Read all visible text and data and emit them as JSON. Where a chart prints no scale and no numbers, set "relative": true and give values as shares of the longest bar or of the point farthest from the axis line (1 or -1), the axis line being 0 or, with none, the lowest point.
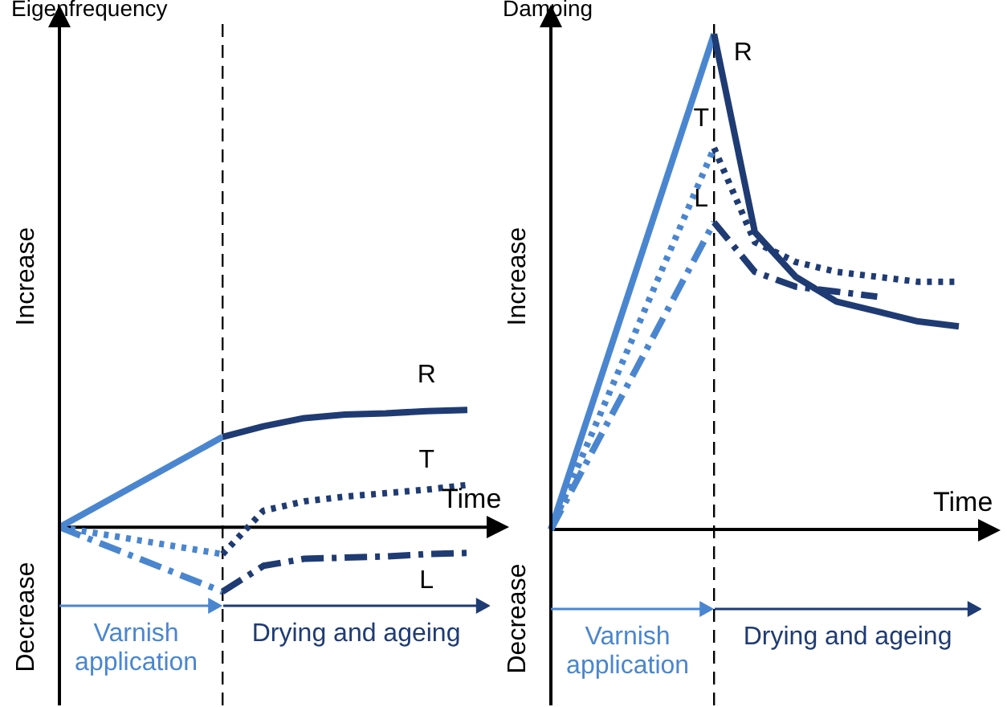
{
  "chart_data": [
    {
      "type": "line",
      "title": "Eigenfrequency",
      "xlabel": "Time",
      "ylabel": "Increase",
      "relative": true,
      "categories": [
        null,
        null,
        null,
        null,
        null,
        null,
        null,
        null,
        null,
        null,
        null
      ],
      "ref_lines": [
        {
          "axis": "x",
          "line_style": "dashed",
          "color": "#000000"
        }
      ],
      "series": [
        {
          "color": "#4a86d0",
          "line_style": "solid",
          "values": [
            0,
            null,
            null,
            null,
            0.77,
            null,
            null,
            null,
            null,
            null,
            null
          ]
        },
        {
          "color": "#4a86d0",
          "line_style": "dotted",
          "values": [
            0,
            null,
            null,
            null,
            -0.23,
            null,
            null,
            null,
            null,
            null,
            null
          ]
        },
        {
          "color": "#4a86d0",
          "line_style": "dashed",
          "values": [
            0,
            null,
            null,
            null,
            -0.55,
            null,
            null,
            null,
            null,
            null,
            null
          ]
        },
        {
          "name": "R",
          "color": "#1f3b73",
          "line_style": "solid",
          "values": [
            null,
            null,
            null,
            null,
            0.77,
            0.86,
            0.93,
            0.96,
            0.97,
            0.99,
            1
          ]
        },
        {
          "name": "T",
          "color": "#1f3b73",
          "line_style": "dotted",
          "values": [
            null,
            null,
            null,
            null,
            -0.23,
            0.14,
            0.22,
            0.26,
            0.29,
            0.32,
            0.36
          ]
        },
        {
          "name": "L",
          "color": "#1f3b73",
          "line_style": "dashed",
          "values": [
            null,
            null,
            null,
            null,
            -0.55,
            -0.33,
            -0.27,
            -0.26,
            -0.25,
            -0.23,
            -0.22
          ]
        }
      ],
      "annotations": [
        "Decrease",
        "Varnish application",
        "Drying and ageing"
      ]
    },
    {
      "type": "line",
      "title": "Damping",
      "xlabel": "Time",
      "ylabel": "Increase",
      "relative": true,
      "categories": [
        null,
        null,
        null,
        null,
        null,
        null,
        null,
        null,
        null,
        null,
        null
      ],
      "ref_lines": [
        {
          "axis": "x",
          "line_style": "dashed",
          "color": "#000000"
        }
      ],
      "series": [
        {
          "color": "#4a86d0",
          "line_style": "solid",
          "values": [
            0,
            null,
            null,
            null,
            1,
            null,
            null,
            null,
            null,
            null,
            null
          ]
        },
        {
          "color": "#4a86d0",
          "line_style": "dotted",
          "values": [
            0,
            null,
            null,
            null,
            0.77,
            null,
            null,
            null,
            null,
            null,
            null
          ]
        },
        {
          "color": "#4a86d0",
          "line_style": "dashed",
          "values": [
            0,
            null,
            null,
            null,
            0.62,
            null,
            null,
            null,
            null,
            null,
            null
          ]
        },
        {
          "name": "R",
          "color": "#1f3b73",
          "line_style": "solid",
          "values": [
            null,
            null,
            null,
            null,
            1,
            0.6,
            0.51,
            0.46,
            0.44,
            0.42,
            0.41
          ]
        },
        {
          "name": "T",
          "color": "#1f3b73",
          "line_style": "dotted",
          "values": [
            null,
            null,
            null,
            null,
            0.77,
            0.58,
            0.54,
            0.52,
            0.51,
            0.5,
            0.5
          ]
        },
        {
          "name": "L",
          "color": "#1f3b73",
          "line_style": "dashed",
          "values": [
            null,
            null,
            null,
            null,
            0.62,
            0.52,
            0.49,
            0.48,
            0.47,
            null,
            null
          ]
        }
      ],
      "annotations": [
        "Decrease",
        "Varnish application",
        "Drying and ageing"
      ]
    }
  ]
}
